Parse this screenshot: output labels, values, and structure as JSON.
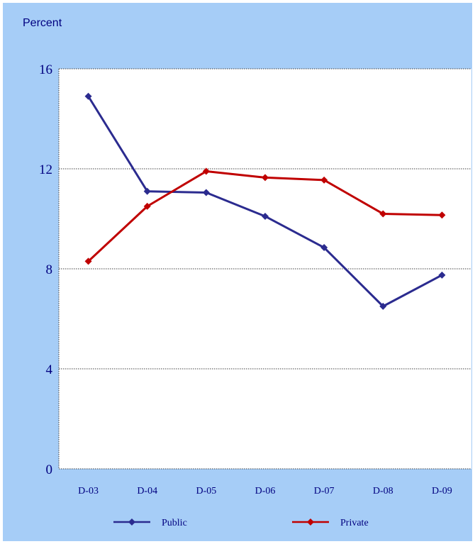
{
  "chart_data": {
    "type": "line",
    "title": "",
    "unit_label": "Percent",
    "xlabel": "",
    "ylabel": "",
    "categories": [
      "D-03",
      "D-04",
      "D-05",
      "D-06",
      "D-07",
      "D-08",
      "D-09"
    ],
    "ylim": [
      0,
      16
    ],
    "yticks": [
      "0",
      "4",
      "8",
      "12",
      "16"
    ],
    "grid": true,
    "legend_position": "bottom",
    "series": [
      {
        "name": "Public",
        "color": "#2b2b8f",
        "marker": "diamond",
        "values": [
          14.9,
          11.1,
          11.05,
          10.1,
          8.85,
          6.5,
          7.75
        ]
      },
      {
        "name": "Private",
        "color": "#c00000",
        "marker": "diamond",
        "values": [
          8.3,
          10.5,
          11.9,
          11.65,
          11.55,
          10.2,
          10.15
        ]
      }
    ],
    "background_color": "#a6cdf7",
    "plot_color": "#ffffff",
    "text_color": "#000080"
  }
}
